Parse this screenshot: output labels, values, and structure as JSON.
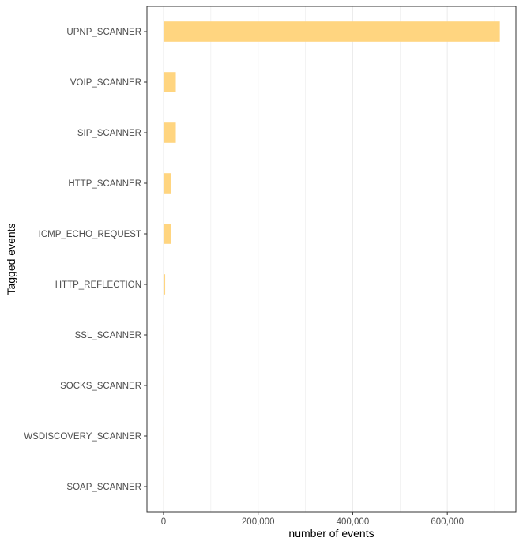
{
  "chart_data": {
    "type": "bar",
    "orientation": "horizontal",
    "xlabel": "number of events",
    "ylabel": "Tagged events",
    "xlim": [
      -35000,
      745000
    ],
    "x_ticks": [
      0,
      200000,
      400000,
      600000
    ],
    "x_tick_labels": [
      "0",
      "200,000",
      "400,000",
      "600,000"
    ],
    "grid": "vertical major and minor lines, light grey",
    "bar_color": "#FFD580",
    "categories": [
      "UPNP_SCANNER",
      "VOIP_SCANNER",
      "SIP_SCANNER",
      "HTTP_SCANNER",
      "ICMP_ECHO_REQUEST",
      "HTTP_REFLECTION",
      "SSL_SCANNER",
      "SOCKS_SCANNER",
      "WSDISCOVERY_SCANNER",
      "SOAP_SCANNER"
    ],
    "values": [
      711000,
      26000,
      26000,
      16000,
      16000,
      3500,
      200,
      150,
      100,
      50
    ]
  }
}
